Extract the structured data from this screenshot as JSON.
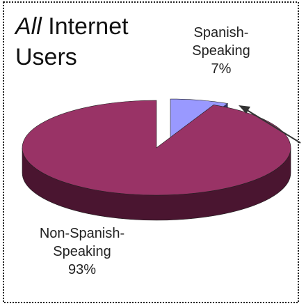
{
  "chart_data": {
    "type": "pie3d",
    "title_parts": [
      "All",
      "Internet",
      "Users"
    ],
    "categories": [
      "Spanish-Speaking",
      "Non-Spanish-Speaking"
    ],
    "values": [
      7,
      93
    ],
    "value_labels": [
      "7%",
      "93%"
    ],
    "colors": [
      "#9999ff",
      "#993366"
    ],
    "side_colors": [
      "#333370",
      "#4a1530"
    ]
  }
}
